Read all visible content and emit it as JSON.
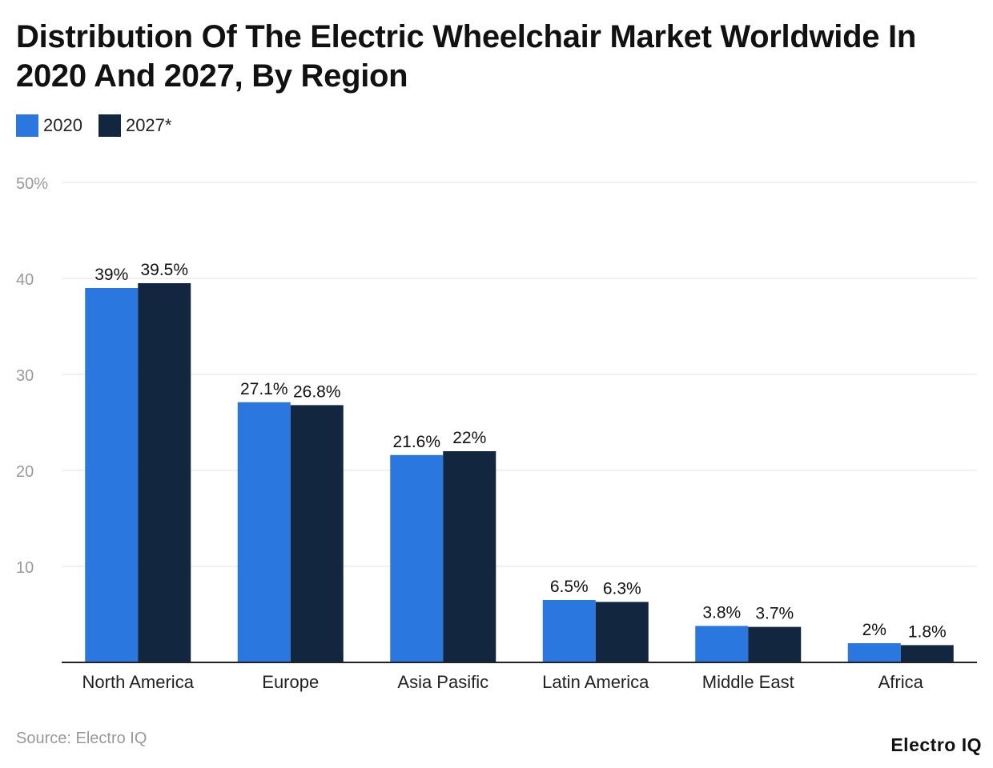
{
  "chart_data": {
    "type": "bar",
    "title": "Distribution Of The Electric Wheelchair Market Worldwide In 2020 And 2027, By Region",
    "categories": [
      "North America",
      "Europe",
      "Asia Pasific",
      "Latin America",
      "Middle East",
      "Africa"
    ],
    "series": [
      {
        "name": "2020",
        "color": "#2a77df",
        "values": [
          39,
          27.1,
          21.6,
          6.5,
          3.8,
          2
        ],
        "labels": [
          "39%",
          "27.1%",
          "21.6%",
          "6.5%",
          "3.8%",
          "2%"
        ]
      },
      {
        "name": "2027*",
        "color": "#12263f",
        "values": [
          39.5,
          26.8,
          22,
          6.3,
          3.7,
          1.8
        ],
        "labels": [
          "39.5%",
          "26.8%",
          "22%",
          "6.3%",
          "3.7%",
          "1.8%"
        ]
      }
    ],
    "ylim": [
      0,
      50
    ],
    "yticks": [
      {
        "v": 10,
        "label": "10"
      },
      {
        "v": 20,
        "label": "20"
      },
      {
        "v": 30,
        "label": "30"
      },
      {
        "v": 40,
        "label": "40"
      },
      {
        "v": 50,
        "label": "50%"
      }
    ],
    "grid": true,
    "legend": "top-left"
  },
  "source": "Source: Electro IQ",
  "logo": "Electro IQ"
}
